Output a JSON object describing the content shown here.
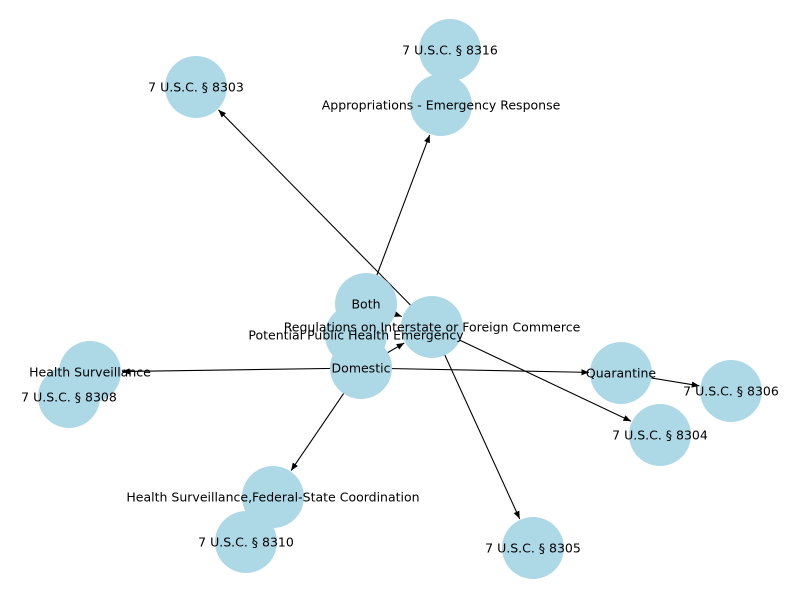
{
  "graph": {
    "nodes": [
      {
        "id": "usc8316",
        "label": "7 U.S.C. § 8316"
      },
      {
        "id": "usc8303",
        "label": "7 U.S.C. § 8303"
      },
      {
        "id": "approp",
        "label": "Appropriations - Emergency Response"
      },
      {
        "id": "both",
        "label": "Both"
      },
      {
        "id": "regs",
        "label": "Regulations on Interstate or Foreign Commerce"
      },
      {
        "id": "pphe",
        "label": "Potential Public Health Emergency"
      },
      {
        "id": "domestic",
        "label": "Domestic"
      },
      {
        "id": "healthsurv",
        "label": "Health Surveillance"
      },
      {
        "id": "usc8308",
        "label": "7 U.S.C. § 8308"
      },
      {
        "id": "quarantine",
        "label": "Quarantine"
      },
      {
        "id": "usc8306",
        "label": "7 U.S.C. § 8306"
      },
      {
        "id": "usc8304",
        "label": "7 U.S.C. § 8304"
      },
      {
        "id": "hsfsc",
        "label": "Health Surveillance,Federal-State Coordination"
      },
      {
        "id": "usc8310",
        "label": "7 U.S.C. § 8310"
      },
      {
        "id": "usc8305",
        "label": "7 U.S.C. § 8305"
      }
    ],
    "edges": [
      {
        "from": "both",
        "to": "approp"
      },
      {
        "from": "both",
        "to": "regs"
      },
      {
        "from": "regs",
        "to": "usc8303"
      },
      {
        "from": "regs",
        "to": "usc8304"
      },
      {
        "from": "regs",
        "to": "usc8305"
      },
      {
        "from": "domestic",
        "to": "regs"
      },
      {
        "from": "domestic",
        "to": "healthsurv"
      },
      {
        "from": "domestic",
        "to": "quarantine"
      },
      {
        "from": "domestic",
        "to": "hsfsc"
      },
      {
        "from": "quarantine",
        "to": "usc8306"
      }
    ]
  }
}
